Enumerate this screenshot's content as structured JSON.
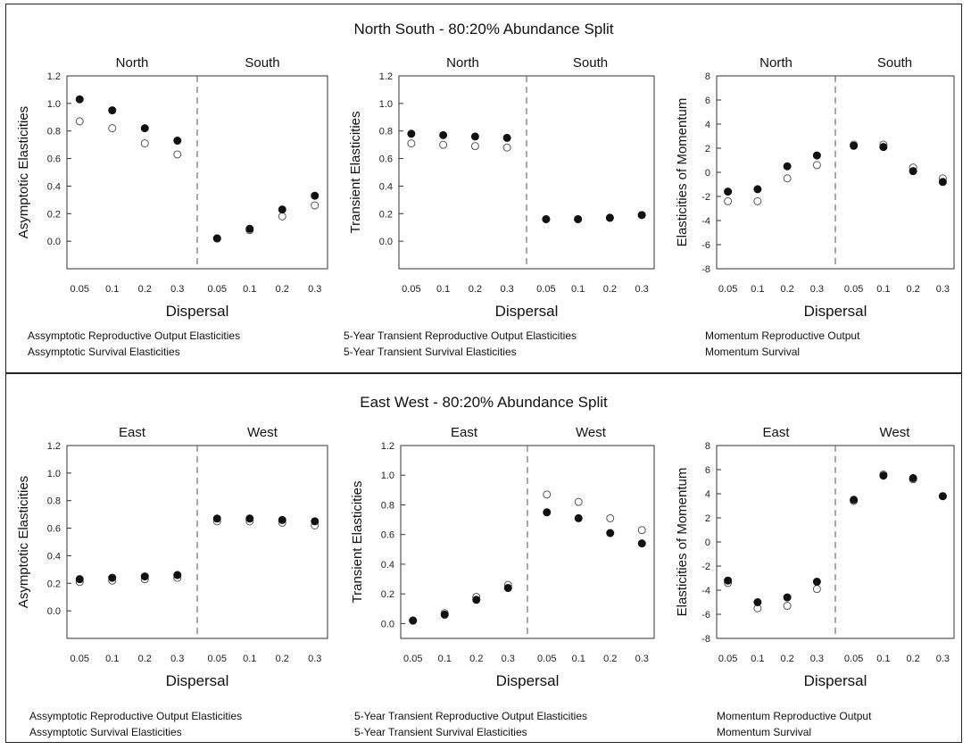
{
  "panels": [
    {
      "title": "North South - 80:20% Abundance Split",
      "charts": [
        {
          "legend": [
            "Assymptotic Reproductive Output Elasticities",
            "Assymptotic Survival Elasticities"
          ]
        },
        {
          "legend": [
            "5-Year Transient Reproductive Output Elasticities",
            "5-Year Transient Survival Elasticities"
          ]
        },
        {
          "legend": [
            "Momentum Reproductive Output",
            "Momentum Survival"
          ]
        }
      ]
    },
    {
      "title": "East West - 80:20% Abundance Split",
      "charts": [
        {
          "legend": [
            "Assymptotic Reproductive Output Elasticities",
            "Assymptotic Survival Elasticities"
          ]
        },
        {
          "legend": [
            "5-Year Transient Reproductive Output Elasticities",
            "5-Year Transient Survival Elasticities"
          ]
        },
        {
          "legend": [
            "Momentum Reproductive Output",
            "Momentum Survival"
          ]
        }
      ]
    }
  ],
  "chart_data": [
    {
      "type": "scatter",
      "panel": 0,
      "group_labels": [
        "North",
        "South"
      ],
      "categories": [
        "0.05",
        "0.1",
        "0.2",
        "0.3",
        "0.05",
        "0.1",
        "0.2",
        "0.3"
      ],
      "xlabel": "Dispersal",
      "ylabel": "Asymptotic Elasticities",
      "ylim": [
        -0.2,
        1.2
      ],
      "yticks": [
        0.0,
        0.2,
        0.4,
        0.6,
        0.8,
        1.0,
        1.2
      ],
      "tick_decimals": 1,
      "series": [
        {
          "name": "Assymptotic Reproductive Output Elasticities",
          "marker": "filled",
          "values": [
            1.03,
            0.95,
            0.82,
            0.73,
            0.02,
            0.09,
            0.23,
            0.33
          ]
        },
        {
          "name": "Assymptotic Survival Elasticities",
          "marker": "open",
          "values": [
            0.87,
            0.82,
            0.71,
            0.63,
            0.02,
            0.08,
            0.18,
            0.26
          ]
        }
      ]
    },
    {
      "type": "scatter",
      "panel": 0,
      "group_labels": [
        "North",
        "South"
      ],
      "categories": [
        "0.05",
        "0.1",
        "0.2",
        "0.3",
        "0.05",
        "0.1",
        "0.2",
        "0.3"
      ],
      "xlabel": "Dispersal",
      "ylabel": "Transient Elasticities",
      "ylim": [
        -0.2,
        1.2
      ],
      "yticks": [
        0.0,
        0.2,
        0.4,
        0.6,
        0.8,
        1.0,
        1.2
      ],
      "tick_decimals": 1,
      "series": [
        {
          "name": "5-Year Transient Reproductive Output Elasticities",
          "marker": "filled",
          "values": [
            0.78,
            0.77,
            0.76,
            0.75,
            0.16,
            0.16,
            0.17,
            0.19
          ]
        },
        {
          "name": "5-Year Transient Survival Elasticities",
          "marker": "open",
          "values": [
            0.71,
            0.7,
            0.69,
            0.68,
            0.16,
            0.16,
            0.17,
            0.19
          ]
        }
      ]
    },
    {
      "type": "scatter",
      "panel": 0,
      "group_labels": [
        "North",
        "South"
      ],
      "categories": [
        "0.05",
        "0.1",
        "0.2",
        "0.3",
        "0.05",
        "0.1",
        "0.2",
        "0.3"
      ],
      "xlabel": "Dispersal",
      "ylabel": "Elasticities of Momentum",
      "ylim": [
        -8,
        8
      ],
      "yticks": [
        -8,
        -6,
        -4,
        -2,
        0,
        2,
        4,
        6,
        8
      ],
      "tick_decimals": 0,
      "series": [
        {
          "name": "Momentum Reproductive Output",
          "marker": "filled",
          "values": [
            -1.6,
            -1.4,
            0.5,
            1.4,
            2.2,
            2.1,
            0.1,
            -0.8
          ]
        },
        {
          "name": "Momentum Survival",
          "marker": "open",
          "values": [
            -2.4,
            -2.4,
            -0.5,
            0.6,
            2.3,
            2.3,
            0.4,
            -0.5
          ]
        }
      ]
    },
    {
      "type": "scatter",
      "panel": 1,
      "group_labels": [
        "East",
        "West"
      ],
      "categories": [
        "0.05",
        "0.1",
        "0.2",
        "0.3",
        "0.05",
        "0.1",
        "0.2",
        "0.3"
      ],
      "xlabel": "Dispersal",
      "ylabel": "Asymptotic Elasticities",
      "ylim": [
        -0.2,
        1.2
      ],
      "yticks": [
        0.0,
        0.2,
        0.4,
        0.6,
        0.8,
        1.0,
        1.2
      ],
      "tick_decimals": 1,
      "series": [
        {
          "name": "Assymptotic Reproductive Output Elasticities",
          "marker": "filled",
          "values": [
            0.23,
            0.24,
            0.25,
            0.26,
            0.67,
            0.67,
            0.66,
            0.65
          ]
        },
        {
          "name": "Assymptotic Survival Elasticities",
          "marker": "open",
          "values": [
            0.21,
            0.22,
            0.23,
            0.24,
            0.65,
            0.65,
            0.64,
            0.62
          ]
        }
      ]
    },
    {
      "type": "scatter",
      "panel": 1,
      "group_labels": [
        "East",
        "West"
      ],
      "categories": [
        "0.05",
        "0.1",
        "0.2",
        "0.3",
        "0.05",
        "0.1",
        "0.2",
        "0.3"
      ],
      "xlabel": "Dispersal",
      "ylabel": "Transient Elasticities",
      "ylim": [
        -0.1,
        1.2
      ],
      "yticks": [
        0.0,
        0.2,
        0.4,
        0.6,
        0.8,
        1.0,
        1.2
      ],
      "tick_decimals": 1,
      "series": [
        {
          "name": "5-Year Transient Reproductive Output Elasticities",
          "marker": "filled",
          "values": [
            0.02,
            0.06,
            0.16,
            0.24,
            0.75,
            0.71,
            0.61,
            0.54
          ]
        },
        {
          "name": "5-Year Transient Survival Elasticities",
          "marker": "open",
          "values": [
            0.02,
            0.07,
            0.18,
            0.26,
            0.87,
            0.82,
            0.71,
            0.63
          ]
        }
      ]
    },
    {
      "type": "scatter",
      "panel": 1,
      "group_labels": [
        "East",
        "West"
      ],
      "categories": [
        "0.05",
        "0.1",
        "0.2",
        "0.3",
        "0.05",
        "0.1",
        "0.2",
        "0.3"
      ],
      "xlabel": "Dispersal",
      "ylabel": "Elasticities of Momentum",
      "ylim": [
        -8,
        8
      ],
      "yticks": [
        -8,
        -6,
        -4,
        -2,
        0,
        2,
        4,
        6,
        8
      ],
      "tick_decimals": 0,
      "series": [
        {
          "name": "Momentum Reproductive Output",
          "marker": "filled",
          "values": [
            -3.2,
            -5.0,
            -4.6,
            -3.3,
            3.5,
            5.5,
            5.3,
            3.8
          ]
        },
        {
          "name": "Momentum Survival",
          "marker": "open",
          "values": [
            -3.4,
            -5.5,
            -5.3,
            -3.9,
            3.4,
            5.6,
            5.2,
            3.8
          ]
        }
      ]
    }
  ]
}
